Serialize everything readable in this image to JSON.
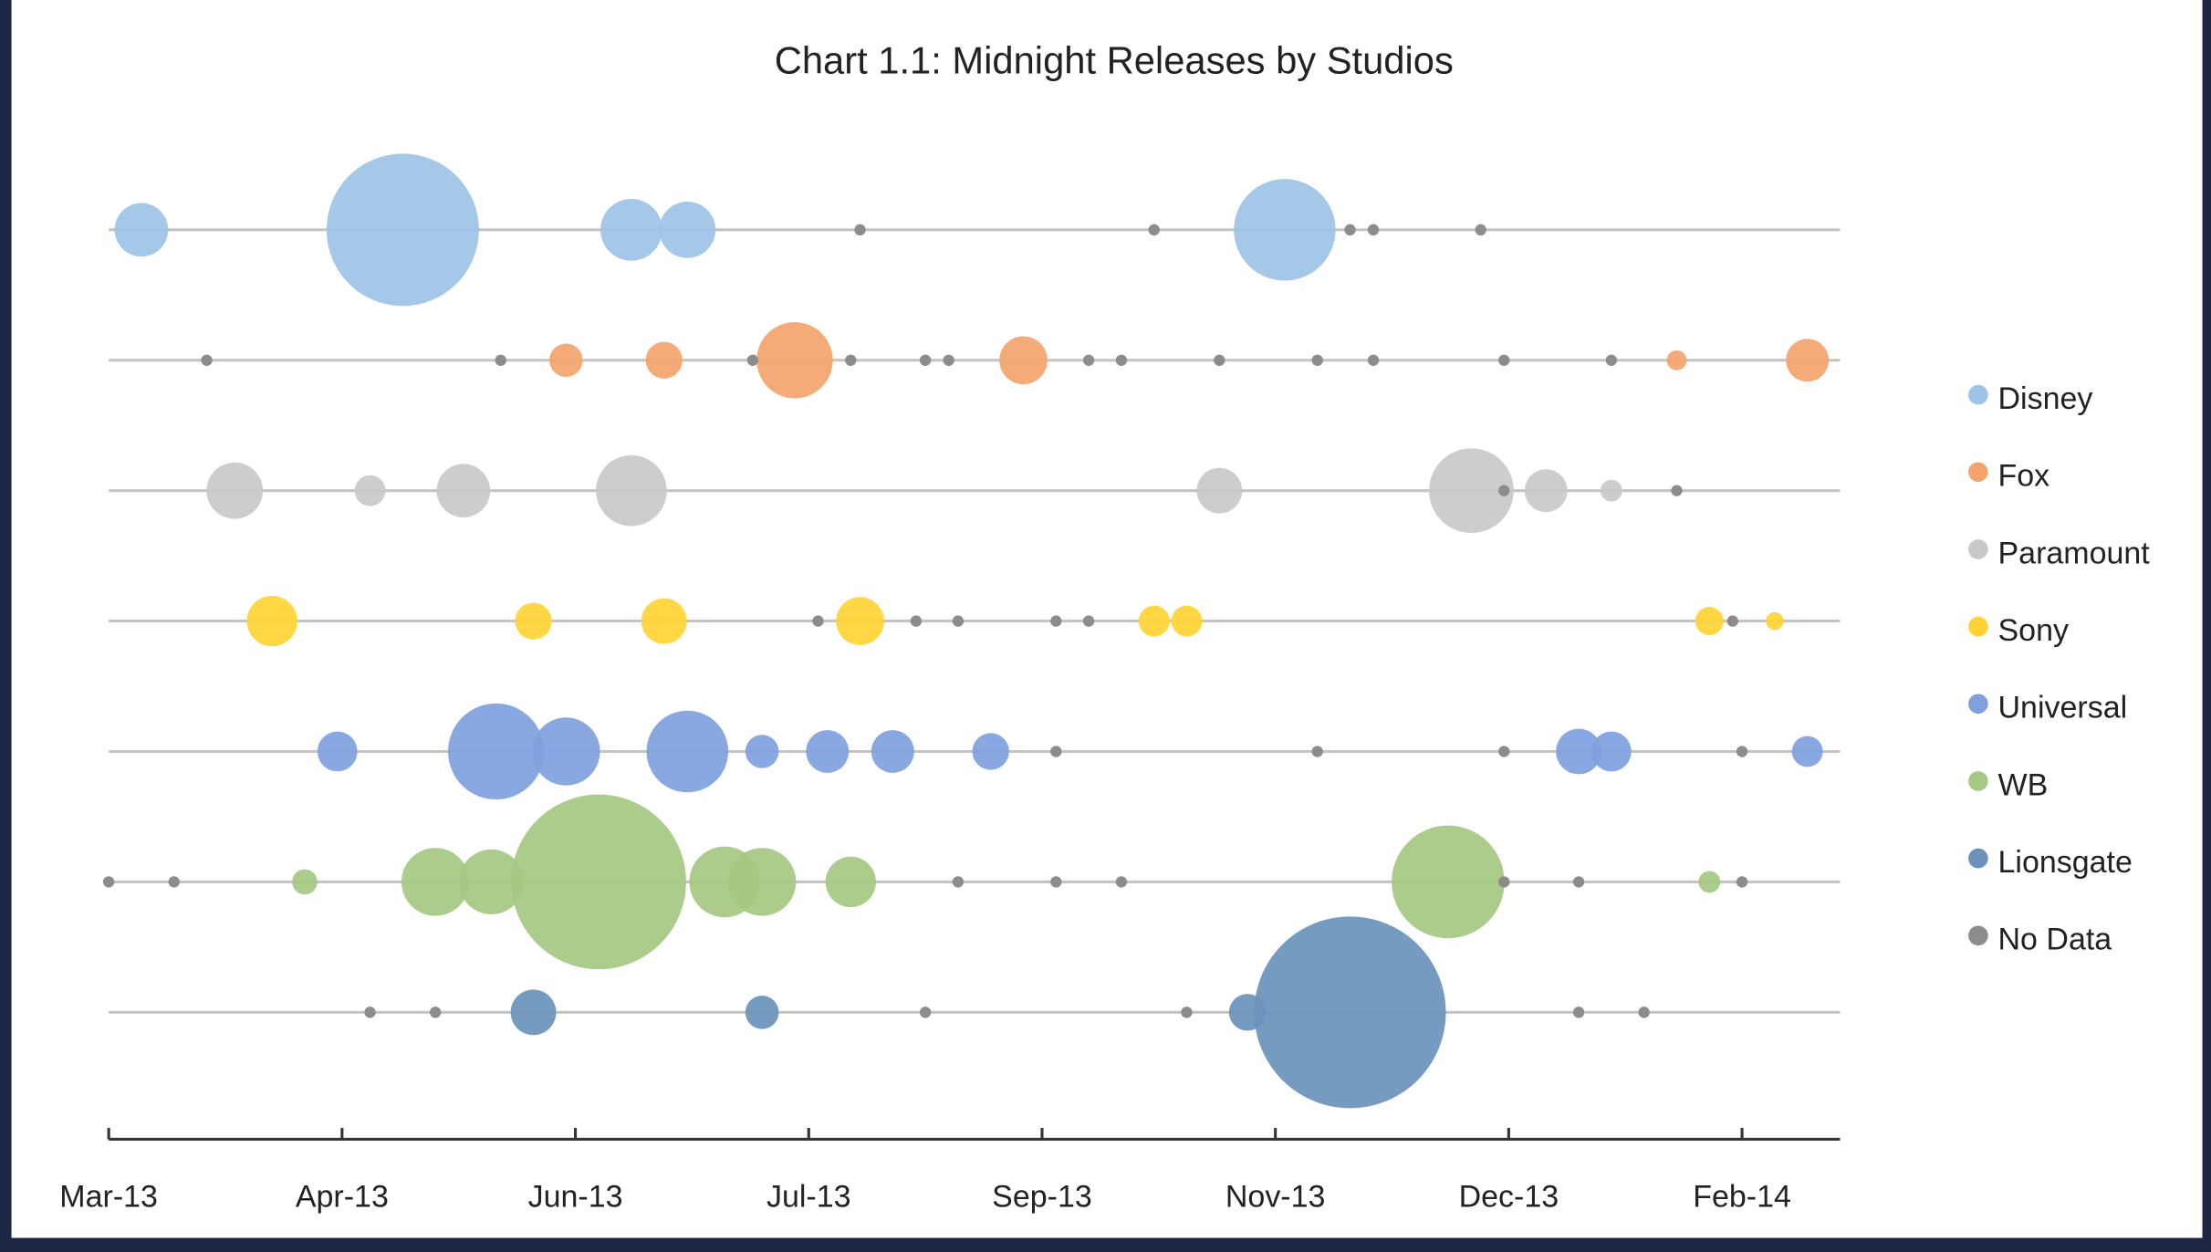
{
  "chart_data": {
    "type": "bubble",
    "title": "Chart 1.1: Midnight Releases by Studios",
    "xlabel": "",
    "ylabel": "",
    "xlim": [
      "2013-03-01",
      "2014-03-07"
    ],
    "x_tick_labels": [
      "Mar-13",
      "Apr-13",
      "Jun-13",
      "Jul-13",
      "Sep-13",
      "Nov-13",
      "Dec-13",
      "Feb-14"
    ],
    "x_tick_interval_days": 50,
    "y_axis_visible": false,
    "grid": false,
    "legend_position": "right",
    "no_data_label": "No Data",
    "no_data_color": "#8c8c8c",
    "series": [
      {
        "name": "Disney",
        "color": "#9dc3e6",
        "points": [
          [
            "2013-03-08",
            36
          ],
          [
            "2013-05-03",
            292
          ],
          [
            "2013-06-21",
            48
          ],
          [
            "2013-07-03",
            40
          ],
          [
            "2013-11-08",
            130
          ]
        ],
        "no_data": [
          "2013-08-09",
          "2013-10-11",
          "2013-11-22",
          "2013-11-27",
          "2013-12-20"
        ]
      },
      {
        "name": "Fox",
        "color": "#f4a46c",
        "points": [
          [
            "2013-06-07",
            14
          ],
          [
            "2013-06-28",
            17
          ],
          [
            "2013-07-26",
            73
          ],
          [
            "2013-09-13",
            29
          ],
          [
            "2014-01-31",
            5
          ],
          [
            "2014-02-28",
            23
          ]
        ],
        "no_data": [
          "2013-03-22",
          "2013-05-24",
          "2013-07-17",
          "2013-08-07",
          "2013-08-23",
          "2013-08-28",
          "2013-09-27",
          "2013-10-04",
          "2013-10-25",
          "2013-11-15",
          "2013-11-27",
          "2013-12-25",
          "2014-01-17"
        ]
      },
      {
        "name": "Paramount",
        "color": "#c9c9c9",
        "points": [
          [
            "2013-03-28",
            40
          ],
          [
            "2013-04-26",
            12
          ],
          [
            "2013-05-16",
            36
          ],
          [
            "2013-06-21",
            63
          ],
          [
            "2013-10-25",
            26
          ],
          [
            "2013-12-18",
            90
          ],
          [
            "2014-01-03",
            23
          ],
          [
            "2014-01-17",
            6
          ]
        ],
        "no_data": [
          "2013-12-25",
          "2014-01-31"
        ]
      },
      {
        "name": "Sony",
        "color": "#ffd233",
        "points": [
          [
            "2013-04-05",
            32
          ],
          [
            "2013-05-31",
            17
          ],
          [
            "2013-06-28",
            26
          ],
          [
            "2013-08-09",
            29
          ],
          [
            "2013-10-11",
            12
          ],
          [
            "2013-10-18",
            12
          ],
          [
            "2014-02-07",
            10
          ],
          [
            "2014-02-21",
            4
          ]
        ],
        "no_data": [
          "2013-07-31",
          "2013-08-21",
          "2013-08-30",
          "2013-09-20",
          "2013-09-27",
          "2014-02-12"
        ]
      },
      {
        "name": "Universal",
        "color": "#7f9fdd",
        "points": [
          [
            "2013-04-19",
            20
          ],
          [
            "2013-05-23",
            116
          ],
          [
            "2013-06-07",
            58
          ],
          [
            "2013-07-03",
            84
          ],
          [
            "2013-07-19",
            14
          ],
          [
            "2013-08-02",
            23
          ],
          [
            "2013-08-16",
            23
          ],
          [
            "2013-09-06",
            17
          ],
          [
            "2014-01-10",
            26
          ],
          [
            "2014-01-17",
            20
          ],
          [
            "2014-02-28",
            12
          ]
        ],
        "no_data": [
          "2013-09-20",
          "2013-11-15",
          "2013-12-25",
          "2014-02-14"
        ]
      },
      {
        "name": "WB",
        "color": "#a5c882",
        "points": [
          [
            "2013-04-12",
            8
          ],
          [
            "2013-05-10",
            58
          ],
          [
            "2013-05-22",
            53
          ],
          [
            "2013-06-14",
            384
          ],
          [
            "2013-07-11",
            63
          ],
          [
            "2013-07-19",
            58
          ],
          [
            "2013-08-07",
            32
          ],
          [
            "2013-12-13",
            160
          ],
          [
            "2014-02-07",
            6
          ]
        ],
        "no_data": [
          "2013-03-01",
          "2013-03-15",
          "2013-08-30",
          "2013-09-20",
          "2013-10-04",
          "2013-12-25",
          "2014-01-10",
          "2014-02-14"
        ]
      },
      {
        "name": "Lionsgate",
        "color": "#6a93bb",
        "points": [
          [
            "2013-05-31",
            26
          ],
          [
            "2013-07-19",
            14
          ],
          [
            "2013-10-31",
            17
          ],
          [
            "2013-11-22",
            462
          ]
        ],
        "no_data": [
          "2013-04-26",
          "2013-05-10",
          "2013-08-23",
          "2013-10-18",
          "2014-01-10",
          "2014-01-24"
        ]
      }
    ]
  }
}
